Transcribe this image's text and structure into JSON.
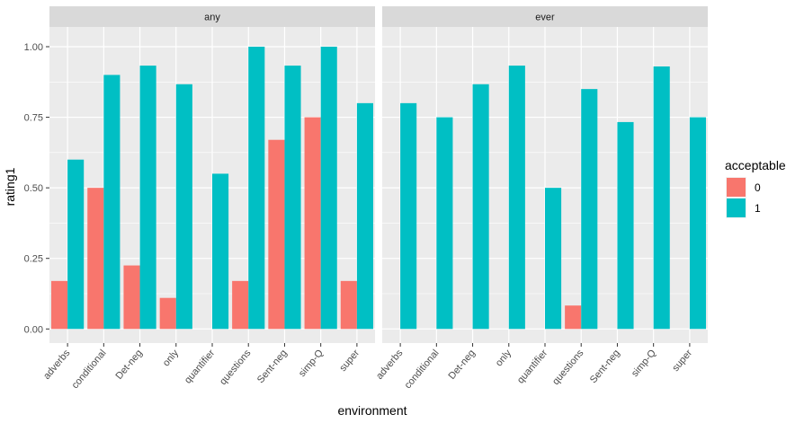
{
  "chart_data": {
    "type": "bar",
    "facets": [
      "any",
      "ever"
    ],
    "categories": [
      "adverbs",
      "conditional",
      "Det-neg",
      "only",
      "quantifier",
      "questions",
      "Sent-neg",
      "simp-Q",
      "super"
    ],
    "series": [
      {
        "name": "0",
        "color": "#F8766D",
        "values": {
          "any": [
            0.17,
            0.5,
            0.225,
            0.11,
            0.0,
            0.17,
            0.67,
            0.75,
            0.17
          ],
          "ever": [
            0.0,
            0.0,
            0.0,
            0.0,
            0.0,
            0.083,
            0.0,
            0.0,
            0.0
          ]
        }
      },
      {
        "name": "1",
        "color": "#00BFC4",
        "values": {
          "any": [
            0.6,
            0.9,
            0.933,
            0.867,
            0.55,
            1.0,
            0.933,
            1.0,
            0.8
          ],
          "ever": [
            0.8,
            0.75,
            0.867,
            0.933,
            0.5,
            0.85,
            0.733,
            0.93,
            0.75
          ]
        }
      }
    ],
    "yticks": [
      "0.00",
      "0.25",
      "0.50",
      "0.75",
      "1.00"
    ],
    "ylim": [
      -0.05,
      1.07
    ],
    "xlabel": "environment",
    "ylabel": "rating1",
    "legend_title": "acceptable",
    "legend_position": "right",
    "grid": true,
    "panel_color": "#EBEBEB",
    "strip_color": "#D9D9D9"
  }
}
